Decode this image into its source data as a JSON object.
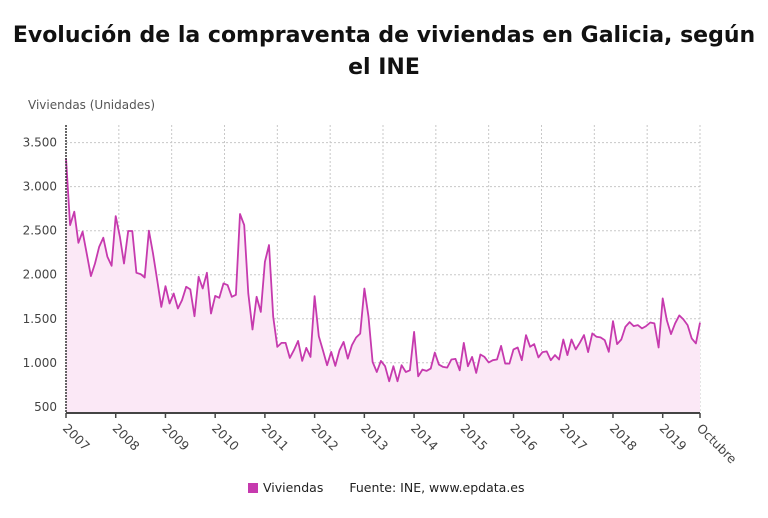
{
  "title": "Evolución de la compraventa de viviendas en Galicia, según el INE",
  "legend": {
    "series_label": "Viviendas",
    "source": "Fuente: INE, www.epdata.es"
  },
  "colors": {
    "line": "#c63aae",
    "fill": "#fbe8f6",
    "grid": "#c8c8c8"
  },
  "chart_data": {
    "type": "area",
    "title": "Evolución de la compraventa de viviendas en Galicia, según el INE",
    "ylabel": "Viviendas (Unidades)",
    "xlabel": "",
    "x_start": "2007-01",
    "x_end": "2019-10",
    "frequency": "monthly",
    "x_tick_labels": [
      "2007",
      "2008",
      "2009",
      "2010",
      "2011",
      "2012",
      "2013",
      "2014",
      "2015",
      "2016",
      "2017",
      "2018",
      "2019",
      "Octubre"
    ],
    "y_ticks": [
      500,
      1000,
      1500,
      2000,
      2500,
      3000,
      3500
    ],
    "y_tick_labels": [
      "500",
      "1.000",
      "1.500",
      "2.000",
      "2.500",
      "3.000",
      "3.500"
    ],
    "ylim": [
      430,
      3700
    ],
    "grid": true,
    "legend_position": "bottom",
    "series": [
      {
        "name": "Viviendas",
        "values": [
          3322,
          2564,
          2716,
          2363,
          2488,
          2242,
          1984,
          2128,
          2318,
          2420,
          2204,
          2101,
          2666,
          2431,
          2128,
          2496,
          2496,
          2022,
          2007,
          1969,
          2500,
          2242,
          1939,
          1635,
          1870,
          1673,
          1787,
          1616,
          1711,
          1863,
          1833,
          1529,
          1976,
          1844,
          2022,
          1560,
          1760,
          1738,
          1901,
          1882,
          1749,
          1772,
          2689,
          2564,
          1787,
          1378,
          1749,
          1578,
          2147,
          2336,
          1522,
          1181,
          1226,
          1226,
          1056,
          1143,
          1249,
          1022,
          1169,
          1067,
          1757,
          1302,
          1143,
          973,
          1124,
          965,
          1143,
          1237,
          1048,
          1200,
          1287,
          1332,
          1844,
          1522,
          1010,
          896,
          1022,
          961,
          790,
          961,
          790,
          973,
          896,
          915,
          1351,
          847,
          923,
          908,
          934,
          1116,
          980,
          953,
          946,
          1037,
          1044,
          915,
          1226,
          961,
          1067,
          885,
          1094,
          1067,
          1003,
          1029,
          1037,
          1192,
          991,
          991,
          1152,
          1174,
          1030,
          1315,
          1182,
          1212,
          1061,
          1121,
          1129,
          1030,
          1087,
          1038,
          1265,
          1087,
          1265,
          1152,
          1227,
          1315,
          1121,
          1334,
          1296,
          1288,
          1258,
          1125,
          1474,
          1212,
          1265,
          1409,
          1462,
          1417,
          1428,
          1390,
          1417,
          1458,
          1447,
          1174,
          1731,
          1485,
          1326,
          1447,
          1538,
          1493,
          1428,
          1277,
          1220,
          1455
        ]
      }
    ]
  }
}
